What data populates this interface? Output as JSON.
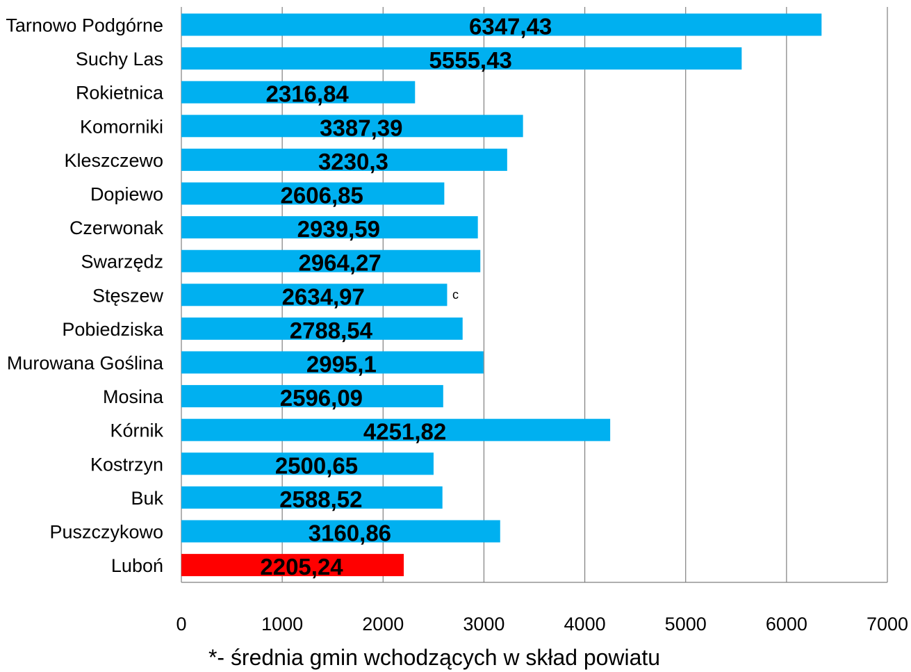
{
  "chart_data": {
    "type": "bar",
    "orientation": "horizontal",
    "categories": [
      "Tarnowo Podgórne",
      "Suchy Las",
      "Rokietnica",
      "Komorniki",
      "Kleszczewo",
      "Dopiewo",
      "Czerwonak",
      "Swarzędz",
      "Stęszew",
      "Pobiedziska",
      "Murowana Goślina",
      "Mosina",
      "Kórnik",
      "Kostrzyn",
      "Buk",
      "Puszczykowo",
      "Luboń"
    ],
    "values": [
      6347.43,
      5555.43,
      2316.84,
      3387.39,
      3230.3,
      2606.85,
      2939.59,
      2964.27,
      2634.97,
      2788.54,
      2995.1,
      2596.09,
      4251.82,
      2500.65,
      2588.52,
      3160.86,
      2205.24
    ],
    "value_labels": [
      "6347,43",
      "5555,43",
      "2316,84",
      "3387,39",
      "3230,3",
      "2606,85",
      "2939,59",
      "2964,27",
      "2634,97",
      "2788,54",
      "2995,1",
      "2596,09",
      "4251,82",
      "2500,65",
      "2588,52",
      "3160,86",
      "2205,24"
    ],
    "xlim": [
      0,
      7000
    ],
    "x_ticks": [
      "0",
      "1000",
      "2000",
      "3000",
      "4000",
      "5000",
      "6000",
      "7000"
    ],
    "grid": "vertical",
    "legend": "none",
    "colors": {
      "default_bar": "#00B0F0",
      "highlight_bar": "#FF0000",
      "gridline": "#7f7f7f"
    },
    "highlight_category": "Luboń",
    "stray_mark": "c",
    "footnote": "*- średnia gmin wchodzących w skład powiatu"
  }
}
